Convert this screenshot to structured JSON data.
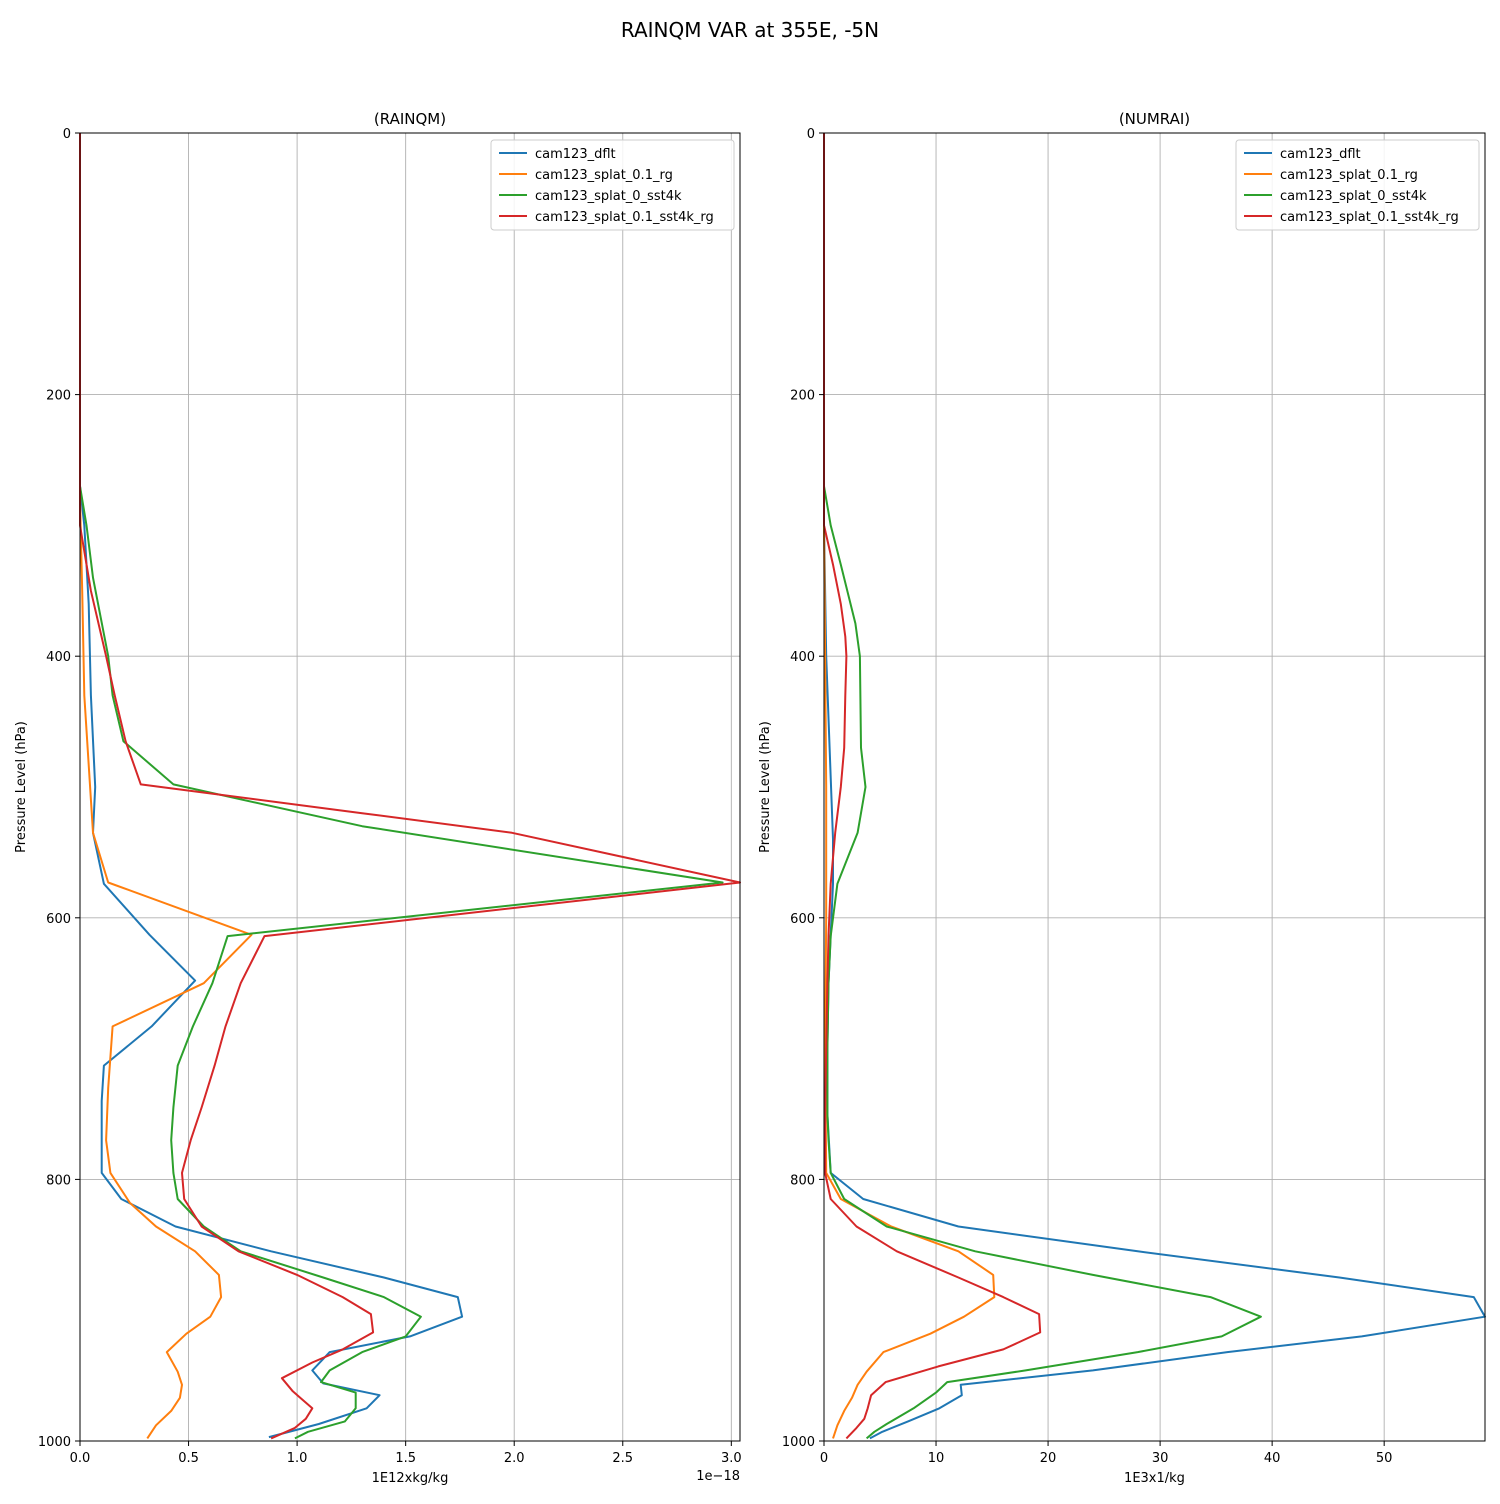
{
  "figure": {
    "title": "RAINQM VAR at 355E, -5N"
  },
  "colors": {
    "cam123_dflt": "#1f77b4",
    "cam123_splat_0.1_rg": "#ff7f0e",
    "cam123_splat_0_sst4k": "#2ca02c",
    "cam123_splat_0.1_sst4k_rg": "#d62728"
  },
  "chart_data": [
    {
      "type": "line",
      "title": "(RAINQM)",
      "xlabel": "1E12xkg/kg",
      "x_offset_label": "1e−18",
      "ylabel": "Pressure Level (hPa)",
      "xlim": [
        0,
        3.04
      ],
      "ylim": [
        1000,
        0
      ],
      "y_inverted": true,
      "xticks": [
        0,
        0.5,
        1.0,
        1.5,
        2.0,
        2.5,
        3.0
      ],
      "xtick_labels": [
        "0.0",
        "0.5",
        "1.0",
        "1.5",
        "2.0",
        "2.5",
        "3.0"
      ],
      "yticks": [
        0,
        200,
        400,
        600,
        800,
        1000
      ],
      "ytick_labels": [
        "0",
        "200",
        "400",
        "600",
        "800",
        "1000"
      ],
      "grid": true,
      "legend_position": "top-right",
      "series": [
        {
          "name": "cam123_dflt",
          "points": [
            [
              0,
              0
            ],
            [
              0,
              270
            ],
            [
              0.02,
              300
            ],
            [
              0.04,
              360
            ],
            [
              0.05,
              430
            ],
            [
              0.07,
              500
            ],
            [
              0.06,
              535
            ],
            [
              0.11,
              574
            ],
            [
              0.32,
              613
            ],
            [
              0.53,
              648
            ],
            [
              0.33,
              683
            ],
            [
              0.11,
              713
            ],
            [
              0.1,
              740
            ],
            [
              0.1,
              770
            ],
            [
              0.1,
              795
            ],
            [
              0.19,
              815
            ],
            [
              0.44,
              836
            ],
            [
              0.88,
              855
            ],
            [
              1.4,
              875
            ],
            [
              1.74,
              890
            ],
            [
              1.76,
              905
            ],
            [
              1.52,
              920
            ],
            [
              1.15,
              932
            ],
            [
              1.07,
              946
            ],
            [
              1.12,
              956
            ],
            [
              1.38,
              965
            ],
            [
              1.32,
              975
            ],
            [
              1.1,
              987
            ],
            [
              0.87,
              997
            ]
          ]
        },
        {
          "name": "cam123_splat_0.1_rg",
          "points": [
            [
              0,
              0
            ],
            [
              0,
              280
            ],
            [
              0.01,
              350
            ],
            [
              0.02,
              430
            ],
            [
              0.06,
              535
            ],
            [
              0.13,
              573
            ],
            [
              0.79,
              613
            ],
            [
              0.57,
              650
            ],
            [
              0.15,
              683
            ],
            [
              0.13,
              730
            ],
            [
              0.12,
              770
            ],
            [
              0.14,
              795
            ],
            [
              0.23,
              818
            ],
            [
              0.35,
              836
            ],
            [
              0.53,
              855
            ],
            [
              0.64,
              873
            ],
            [
              0.65,
              890
            ],
            [
              0.6,
              905
            ],
            [
              0.49,
              918
            ],
            [
              0.4,
              932
            ],
            [
              0.45,
              947
            ],
            [
              0.47,
              957
            ],
            [
              0.46,
              967
            ],
            [
              0.42,
              977
            ],
            [
              0.35,
              988
            ],
            [
              0.31,
              998
            ]
          ]
        },
        {
          "name": "cam123_splat_0_sst4k",
          "points": [
            [
              0,
              0
            ],
            [
              0,
              270
            ],
            [
              0.03,
              300
            ],
            [
              0.06,
              340
            ],
            [
              0.13,
              400
            ],
            [
              0.15,
              430
            ],
            [
              0.2,
              465
            ],
            [
              0.43,
              498
            ],
            [
              1.3,
              530
            ],
            [
              2.96,
              573
            ],
            [
              0.68,
              614
            ],
            [
              0.61,
              650
            ],
            [
              0.52,
              683
            ],
            [
              0.45,
              713
            ],
            [
              0.43,
              745
            ],
            [
              0.42,
              770
            ],
            [
              0.43,
              795
            ],
            [
              0.45,
              815
            ],
            [
              0.57,
              836
            ],
            [
              0.74,
              855
            ],
            [
              1.12,
              875
            ],
            [
              1.4,
              890
            ],
            [
              1.57,
              905
            ],
            [
              1.5,
              920
            ],
            [
              1.3,
              932
            ],
            [
              1.15,
              946
            ],
            [
              1.11,
              955
            ],
            [
              1.27,
              963
            ],
            [
              1.27,
              975
            ],
            [
              1.22,
              985
            ],
            [
              1.05,
              993
            ],
            [
              0.99,
              998
            ]
          ]
        },
        {
          "name": "cam123_splat_0.1_sst4k_rg",
          "points": [
            [
              0,
              0
            ],
            [
              0,
              300
            ],
            [
              0.05,
              350
            ],
            [
              0.12,
              400
            ],
            [
              0.16,
              430
            ],
            [
              0.21,
              465
            ],
            [
              0.28,
              498
            ],
            [
              1.3,
              520
            ],
            [
              1.99,
              535
            ],
            [
              3.04,
              573
            ],
            [
              0.85,
              614
            ],
            [
              0.74,
              650
            ],
            [
              0.67,
              683
            ],
            [
              0.62,
              713
            ],
            [
              0.56,
              745
            ],
            [
              0.51,
              770
            ],
            [
              0.47,
              795
            ],
            [
              0.48,
              815
            ],
            [
              0.56,
              836
            ],
            [
              0.73,
              855
            ],
            [
              1.0,
              873
            ],
            [
              1.21,
              890
            ],
            [
              1.34,
              903
            ],
            [
              1.35,
              917
            ],
            [
              1.21,
              930
            ],
            [
              1.07,
              940
            ],
            [
              0.93,
              952
            ],
            [
              0.98,
              962
            ],
            [
              1.07,
              975
            ],
            [
              1.04,
              983
            ],
            [
              0.99,
              990
            ],
            [
              0.88,
              998
            ]
          ]
        }
      ]
    },
    {
      "type": "line",
      "title": "(NUMRAI)",
      "xlabel": "1E3x1/kg",
      "x_offset_label": "",
      "ylabel": "Pressure Level (hPa)",
      "xlim": [
        0,
        59
      ],
      "ylim": [
        1000,
        0
      ],
      "y_inverted": true,
      "xticks": [
        0,
        10,
        20,
        30,
        40,
        50
      ],
      "xtick_labels": [
        "0",
        "10",
        "20",
        "30",
        "40",
        "50"
      ],
      "yticks": [
        0,
        200,
        400,
        600,
        800,
        1000
      ],
      "ytick_labels": [
        "0",
        "200",
        "400",
        "600",
        "800",
        "1000"
      ],
      "grid": true,
      "legend_position": "top-right",
      "series": [
        {
          "name": "cam123_dflt",
          "points": [
            [
              0,
              0
            ],
            [
              0,
              300
            ],
            [
              0.2,
              400
            ],
            [
              0.5,
              470
            ],
            [
              0.8,
              540
            ],
            [
              0.8,
              574
            ],
            [
              0.6,
              613
            ],
            [
              0.4,
              650
            ],
            [
              0.3,
              700
            ],
            [
              0.3,
              750
            ],
            [
              0.6,
              795
            ],
            [
              3.5,
              815
            ],
            [
              12,
              836
            ],
            [
              28,
              855
            ],
            [
              46,
              875
            ],
            [
              58,
              890
            ],
            [
              59,
              905
            ],
            [
              48,
              920
            ],
            [
              36,
              932
            ],
            [
              24,
              946
            ],
            [
              12.2,
              957
            ],
            [
              12.3,
              965
            ],
            [
              10.3,
              975
            ],
            [
              7.5,
              985
            ],
            [
              5.2,
              993
            ],
            [
              4.1,
              998
            ]
          ]
        },
        {
          "name": "cam123_splat_0.1_rg",
          "points": [
            [
              0,
              0
            ],
            [
              0,
              300
            ],
            [
              0.1,
              400
            ],
            [
              0.2,
              500
            ],
            [
              0.2,
              600
            ],
            [
              0.1,
              700
            ],
            [
              0.2,
              795
            ],
            [
              1.5,
              815
            ],
            [
              6,
              836
            ],
            [
              12,
              855
            ],
            [
              15.1,
              873
            ],
            [
              15.2,
              890
            ],
            [
              12.5,
              905
            ],
            [
              9.5,
              918
            ],
            [
              5.3,
              932
            ],
            [
              3.8,
              947
            ],
            [
              3,
              957
            ],
            [
              2.5,
              967
            ],
            [
              1.8,
              977
            ],
            [
              1.2,
              988
            ],
            [
              0.8,
              998
            ]
          ]
        },
        {
          "name": "cam123_splat_0_sst4k",
          "points": [
            [
              0,
              0
            ],
            [
              0,
              270
            ],
            [
              0.6,
              300
            ],
            [
              1.5,
              330
            ],
            [
              2.8,
              375
            ],
            [
              3.2,
              400
            ],
            [
              3.3,
              470
            ],
            [
              3.7,
              500
            ],
            [
              3,
              535
            ],
            [
              1.2,
              574
            ],
            [
              0.6,
              614
            ],
            [
              0.4,
              650
            ],
            [
              0.3,
              700
            ],
            [
              0.3,
              750
            ],
            [
              0.4,
              770
            ],
            [
              0.6,
              795
            ],
            [
              1.8,
              815
            ],
            [
              5.6,
              836
            ],
            [
              13.5,
              855
            ],
            [
              24,
              873
            ],
            [
              34.5,
              890
            ],
            [
              39,
              905
            ],
            [
              35.5,
              920
            ],
            [
              28,
              932
            ],
            [
              18,
              946
            ],
            [
              11,
              955
            ],
            [
              10,
              963
            ],
            [
              8,
              975
            ],
            [
              5.6,
              987
            ],
            [
              4.5,
              993
            ],
            [
              3.8,
              998
            ]
          ]
        },
        {
          "name": "cam123_splat_0.1_sst4k_rg",
          "points": [
            [
              0,
              0
            ],
            [
              0,
              300
            ],
            [
              0.8,
              330
            ],
            [
              1.5,
              360
            ],
            [
              1.9,
              385
            ],
            [
              2,
              400
            ],
            [
              1.9,
              430
            ],
            [
              1.8,
              470
            ],
            [
              1.5,
              500
            ],
            [
              1,
              535
            ],
            [
              0.6,
              574
            ],
            [
              0.4,
              614
            ],
            [
              0.3,
              650
            ],
            [
              0.2,
              700
            ],
            [
              0.1,
              750
            ],
            [
              0.1,
              795
            ],
            [
              0.6,
              815
            ],
            [
              2.9,
              836
            ],
            [
              6.5,
              855
            ],
            [
              12,
              875
            ],
            [
              16,
              890
            ],
            [
              19.2,
              903
            ],
            [
              19.3,
              917
            ],
            [
              16,
              930
            ],
            [
              10.2,
              943
            ],
            [
              5.5,
              955
            ],
            [
              4.2,
              965
            ],
            [
              3.9,
              975
            ],
            [
              3.6,
              983
            ],
            [
              2.9,
              990
            ],
            [
              2,
              998
            ]
          ]
        }
      ]
    }
  ]
}
